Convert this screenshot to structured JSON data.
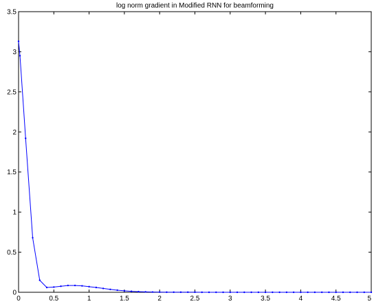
{
  "chart_data": {
    "type": "line",
    "title": "log norm gradient in Modified RNN for beamforming",
    "xlabel": "",
    "ylabel": "",
    "xlim": [
      0,
      5
    ],
    "ylim": [
      0,
      3.5
    ],
    "x_ticks": [
      0,
      0.5,
      1,
      1.5,
      2,
      2.5,
      3,
      3.5,
      4,
      4.5,
      5
    ],
    "x_tick_labels": [
      "0",
      "0.5",
      "1",
      "1.5",
      "2",
      "2.5",
      "3",
      "3.5",
      "4",
      "4.5",
      "5"
    ],
    "y_ticks": [
      0,
      0.5,
      1,
      1.5,
      2,
      2.5,
      3,
      3.5
    ],
    "y_tick_labels": [
      "0",
      "0.5",
      "1",
      "1.5",
      "2",
      "2.5",
      "3",
      "3.5"
    ],
    "grid": false,
    "legend": "none",
    "series": [
      {
        "color": "#0000ff",
        "marker": "dot",
        "x": [
          0,
          0.02,
          0.1,
          0.2,
          0.3,
          0.4,
          0.5,
          0.6,
          0.7,
          0.8,
          0.9,
          1.0,
          1.1,
          1.2,
          1.3,
          1.4,
          1.5,
          1.6,
          1.7,
          1.8,
          1.9,
          2.0,
          2.1,
          2.2,
          2.3,
          2.4,
          2.5,
          2.6,
          2.7,
          2.8,
          2.9,
          3.0,
          3.1,
          3.2,
          3.3,
          3.4,
          3.5,
          3.6,
          3.7,
          3.8,
          3.9,
          4.0,
          4.1,
          4.2,
          4.3,
          4.4,
          4.5,
          4.6,
          4.7,
          4.8,
          4.9,
          5.0
        ],
        "y": [
          3.13,
          2.95,
          1.92,
          0.68,
          0.15,
          0.06,
          0.065,
          0.075,
          0.085,
          0.085,
          0.08,
          0.07,
          0.06,
          0.048,
          0.036,
          0.026,
          0.018,
          0.012,
          0.008,
          0.005,
          0.003,
          0.002,
          0.001,
          0.001,
          0.001,
          0.001,
          0.001,
          0.0,
          0.0,
          0.0,
          0.0,
          0.0,
          0.0,
          0.0,
          0.0,
          0.0,
          0.0,
          0.0,
          0.0,
          0.0,
          0.0,
          0.0,
          0.0,
          0.0,
          0.0,
          0.0,
          0.0,
          0.0,
          0.0,
          0.0,
          0.0,
          0.0
        ]
      }
    ]
  }
}
